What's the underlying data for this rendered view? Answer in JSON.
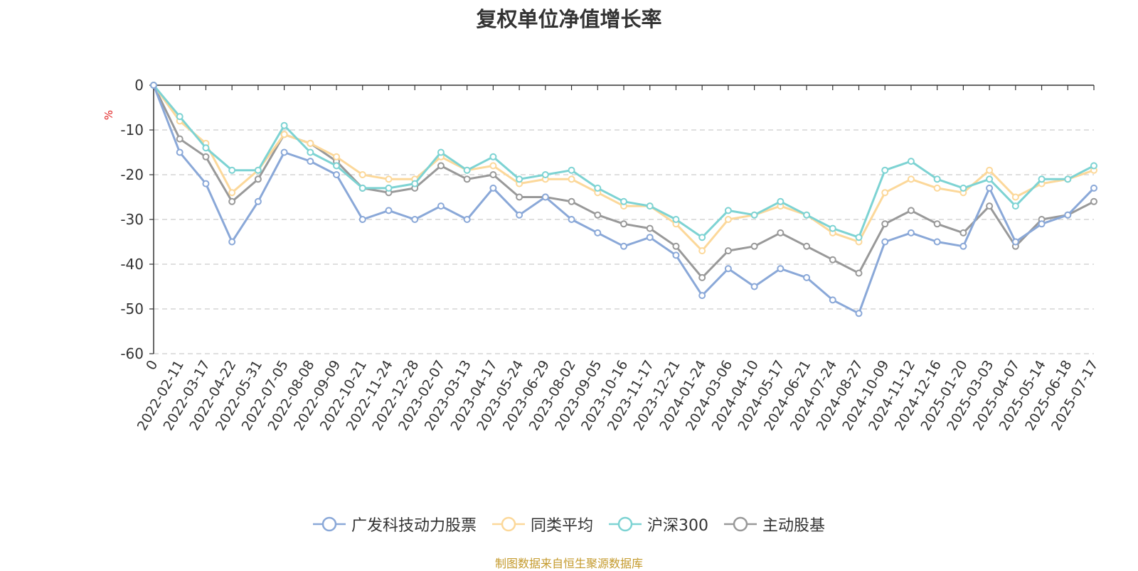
{
  "footer": "制图数据来自恒生聚源数据库",
  "chart_data": {
    "type": "line",
    "title": "复权单位净值增长率",
    "ylabel": "%",
    "ylim": [
      -60,
      0
    ],
    "yticks": [
      0,
      -10,
      -20,
      -30,
      -40,
      -50,
      -60
    ],
    "grid": true,
    "legend_position": "bottom",
    "x": [
      "0",
      "2022-02-11",
      "2022-03-17",
      "2022-04-22",
      "2022-05-31",
      "2022-07-05",
      "2022-08-08",
      "2022-09-09",
      "2022-10-21",
      "2022-11-24",
      "2022-12-28",
      "2023-02-07",
      "2023-03-13",
      "2023-04-17",
      "2023-05-24",
      "2023-06-29",
      "2023-08-02",
      "2023-09-05",
      "2023-10-16",
      "2023-11-17",
      "2023-12-21",
      "2024-01-24",
      "2024-03-06",
      "2024-04-10",
      "2024-05-17",
      "2024-06-21",
      "2024-07-24",
      "2024-08-27",
      "2024-10-09",
      "2024-11-12",
      "2024-12-16",
      "2025-01-20",
      "2025-03-03",
      "2025-04-07",
      "2025-05-14",
      "2025-06-18",
      "2025-07-17"
    ],
    "series": [
      {
        "name": "广发科技动力股票",
        "color": "#8aa8d8",
        "values": [
          0,
          -15,
          -22,
          -35,
          -26,
          -15,
          -17,
          -20,
          -30,
          -28,
          -30,
          -27,
          -30,
          -23,
          -29,
          -25,
          -30,
          -33,
          -36,
          -34,
          -38,
          -47,
          -41,
          -45,
          -41,
          -43,
          -48,
          -51,
          -35,
          -33,
          -35,
          -36,
          -23,
          -35,
          -31,
          -29,
          -23
        ]
      },
      {
        "name": "同类平均",
        "color": "#fcd89a",
        "values": [
          0,
          -8,
          -13,
          -24,
          -19,
          -11,
          -13,
          -16,
          -20,
          -21,
          -21,
          -16,
          -19,
          -18,
          -22,
          -21,
          -21,
          -24,
          -27,
          -27,
          -31,
          -37,
          -30,
          -29,
          -27,
          -29,
          -33,
          -35,
          -24,
          -21,
          -23,
          -24,
          -19,
          -25,
          -22,
          -21,
          -19
        ]
      },
      {
        "name": "沪深300",
        "color": "#7dd3d3",
        "values": [
          0,
          -7,
          -14,
          -19,
          -19,
          -9,
          -15,
          -18,
          -23,
          -23,
          -22,
          -15,
          -19,
          -16,
          -21,
          -20,
          -19,
          -23,
          -26,
          -27,
          -30,
          -34,
          -28,
          -29,
          -26,
          -29,
          -32,
          -34,
          -19,
          -17,
          -21,
          -23,
          -21,
          -27,
          -21,
          -21,
          -18
        ]
      },
      {
        "name": "主动股基",
        "color": "#999999",
        "values": [
          0,
          -12,
          -16,
          -26,
          -21,
          -11,
          -13,
          -17,
          -23,
          -24,
          -23,
          -18,
          -21,
          -20,
          -25,
          -25,
          -26,
          -29,
          -31,
          -32,
          -36,
          -43,
          -37,
          -36,
          -33,
          -36,
          -39,
          -42,
          -31,
          -28,
          -31,
          -33,
          -27,
          -36,
          -30,
          -29,
          -26
        ]
      }
    ]
  }
}
